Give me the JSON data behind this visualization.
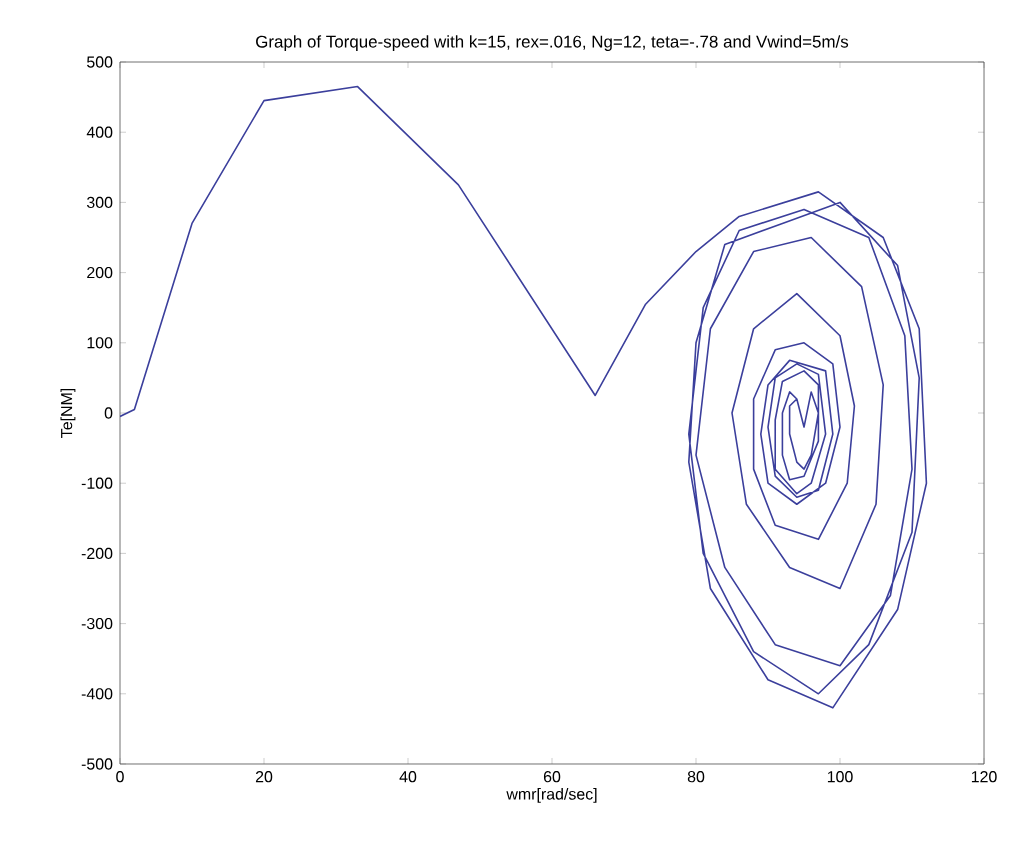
{
  "chart_data": {
    "type": "line",
    "title": "Graph of Torque-speed with k=15, rex=.016, Ng=12, teta=-.78 and Vwind=5m/s",
    "xlabel": "wmr[rad/sec]",
    "ylabel": "Te[NM]",
    "xlim": [
      0,
      120
    ],
    "ylim": [
      -500,
      500
    ],
    "xticks": [
      0,
      20,
      40,
      60,
      80,
      100,
      120
    ],
    "yticks": [
      -500,
      -400,
      -300,
      -200,
      -100,
      0,
      100,
      200,
      300,
      400,
      500
    ],
    "grid": false,
    "line_style": "solid",
    "marker": "none",
    "series": [
      {
        "color": "#3b3f9c",
        "x": [
          0,
          2,
          10,
          20,
          33,
          47,
          66,
          73,
          80,
          86,
          97,
          106,
          111,
          112,
          108,
          99,
          90,
          82,
          79,
          80,
          84,
          92,
          100,
          108,
          111,
          110,
          104,
          97,
          88,
          81,
          79,
          81,
          86,
          95,
          104,
          109,
          110,
          107,
          100,
          91,
          84,
          80,
          82,
          88,
          96,
          103,
          106,
          105,
          100,
          93,
          87,
          85,
          88,
          94,
          100,
          102,
          101,
          97,
          91,
          88,
          88,
          91,
          95,
          99,
          100,
          98,
          94,
          90,
          89,
          90,
          93,
          98,
          99,
          97,
          94,
          91,
          90,
          91,
          94,
          97,
          98,
          96,
          94,
          91,
          91,
          92,
          95,
          97,
          97,
          95,
          93,
          92,
          92,
          93,
          94,
          95,
          96,
          97,
          96,
          95,
          94,
          93,
          93,
          94
        ],
        "values": [
          -5,
          5,
          270,
          445,
          465,
          325,
          25,
          155,
          230,
          280,
          315,
          250,
          120,
          -100,
          -280,
          -420,
          -380,
          -250,
          -70,
          100,
          240,
          270,
          300,
          210,
          50,
          -170,
          -330,
          -400,
          -340,
          -200,
          -30,
          150,
          260,
          290,
          250,
          110,
          -80,
          -260,
          -360,
          -330,
          -220,
          -60,
          120,
          230,
          250,
          180,
          40,
          -130,
          -250,
          -220,
          -130,
          0,
          120,
          170,
          110,
          10,
          -100,
          -180,
          -160,
          -80,
          20,
          90,
          100,
          70,
          -20,
          -100,
          -130,
          -100,
          -30,
          40,
          75,
          60,
          -30,
          -110,
          -120,
          -90,
          -20,
          50,
          70,
          55,
          -30,
          -100,
          -115,
          -80,
          -10,
          45,
          60,
          40,
          -40,
          -90,
          -95,
          -60,
          0,
          30,
          20,
          -20,
          30,
          0,
          -60,
          -80,
          -70,
          -30,
          10,
          20
        ]
      }
    ]
  }
}
